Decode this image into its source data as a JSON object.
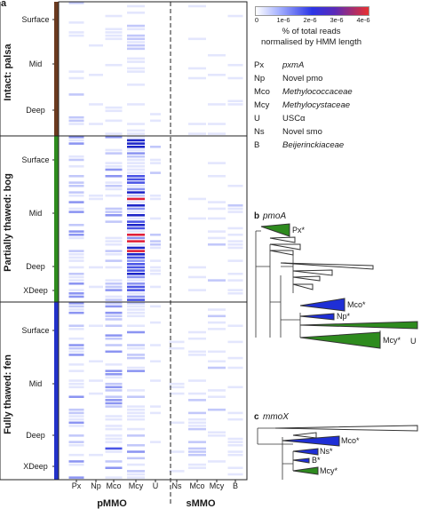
{
  "panel_a_label": "a",
  "panel_b_label": "b",
  "panel_b_gene": "pmoA",
  "panel_c_label": "c",
  "panel_c_gene": "mmoX",
  "sections": [
    {
      "label": "Intact: palsa",
      "color": "#6b3a1f",
      "depths": [
        "Surface",
        "Mid",
        "Deep"
      ]
    },
    {
      "label": "Partially thawed: bog",
      "color": "#2e8b1e",
      "depths": [
        "Surface",
        "Mid",
        "Deep",
        "XDeep"
      ]
    },
    {
      "label": "Fully thawed: fen",
      "color": "#2231c9",
      "depths": [
        "Surface",
        "Mid",
        "Deep",
        "XDeep"
      ]
    }
  ],
  "columns": [
    "Px",
    "Np",
    "Mco",
    "Mcy",
    "U",
    "Ns",
    "Mco",
    "Mcy",
    "B"
  ],
  "groups": [
    "pMMO",
    "sMMO"
  ],
  "colorbar": {
    "ticks": [
      "0",
      "1e-6",
      "2e-6",
      "3e-6",
      "4e-6"
    ],
    "label_line1": "% of total reads",
    "label_line2": "normalised by HMM length"
  },
  "legend": [
    {
      "abbr": "Px",
      "name": "pxmA",
      "italic": true
    },
    {
      "abbr": "Np",
      "name": "Novel pmo",
      "italic": false
    },
    {
      "abbr": "Mco",
      "name": "Methylococcaceae",
      "italic": true
    },
    {
      "abbr": "Mcy",
      "name": "Methylocystaceae",
      "italic": true
    },
    {
      "abbr": "U",
      "name": "USCα",
      "italic": false
    },
    {
      "abbr": "Ns",
      "name": "Novel smo",
      "italic": false
    },
    {
      "abbr": "B",
      "name": "Beijerinckiaceae",
      "italic": true
    }
  ],
  "tree_b_labels": [
    "Px*",
    "Mco*",
    "Np*",
    "U",
    "Mcy*"
  ],
  "tree_c_labels": [
    "Mco*",
    "Ns*",
    "B*",
    "Mcy*"
  ],
  "colors": {
    "green": "#2e8b1e",
    "blue": "#1f2fd6",
    "brown": "#6b3a1f"
  }
}
